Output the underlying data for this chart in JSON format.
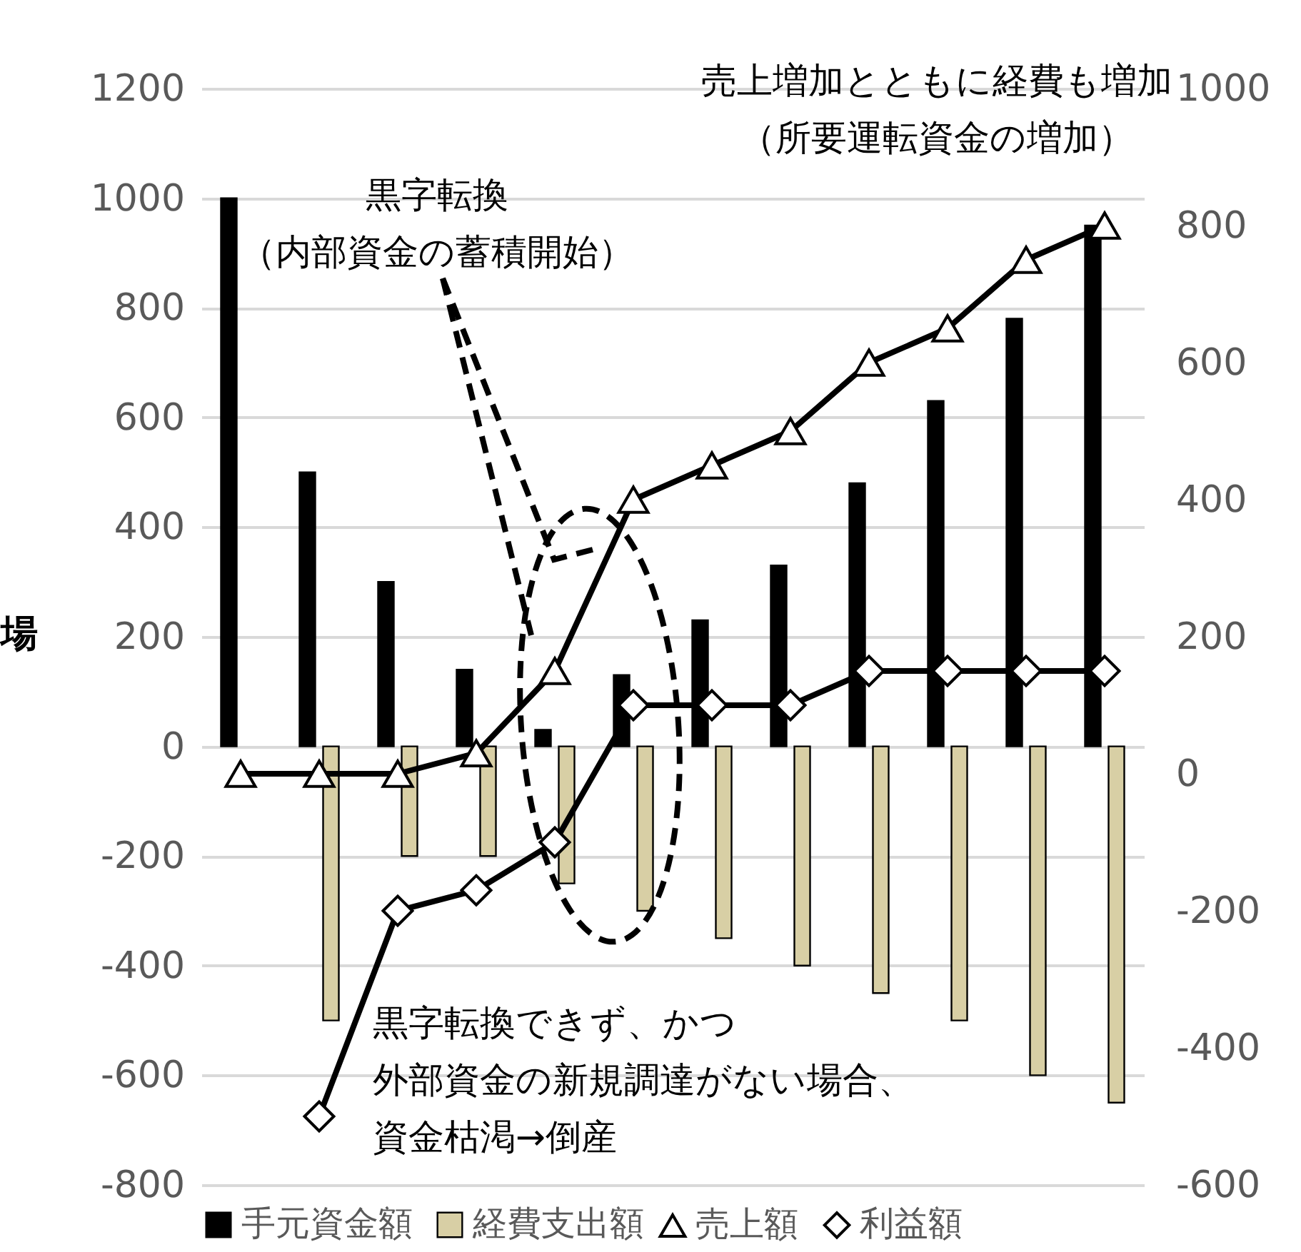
{
  "chart_data": {
    "type": "bar",
    "ylabel": "場",
    "categories": [
      null,
      null,
      null,
      null,
      null,
      null,
      null,
      null,
      null,
      null,
      null,
      null
    ],
    "series": [
      {
        "name": "手元資金額",
        "color": "#000000",
        "values": [
          1000,
          500,
          300,
          140,
          30,
          130,
          230,
          330,
          480,
          630,
          780,
          950
        ]
      },
      {
        "name": "経費支出額",
        "color": "#d8cfa5",
        "values": [
          null,
          -500,
          -200,
          -200,
          -250,
          -300,
          -350,
          -400,
          -450,
          -500,
          -600,
          -650
        ]
      },
      {
        "name": "売上額",
        "type": "line",
        "axis": "y2",
        "marker": "triangle",
        "color": "#000000",
        "values": [
          0,
          0,
          0,
          30,
          150,
          400,
          450,
          500,
          600,
          650,
          750,
          800
        ]
      },
      {
        "name": "利益額",
        "type": "line",
        "axis": "y2",
        "marker": "diamond",
        "color": "#000000",
        "values": [
          null,
          -500,
          -200,
          -170,
          -100,
          100,
          100,
          100,
          150,
          150,
          150,
          150
        ]
      }
    ],
    "ylim": [
      -800,
      1200
    ],
    "yticks": [
      -800,
      -600,
      -400,
      -200,
      0,
      200,
      400,
      600,
      800,
      1000,
      1200
    ],
    "y2lim": [
      -600,
      1000
    ],
    "y2ticks": [
      -600,
      -400,
      -200,
      0,
      200,
      400,
      600,
      800,
      1000
    ],
    "grid": "y",
    "legend": "bottom",
    "annotations": [
      "黒字転換（内部資金の蓄積開始）",
      "売上増加とともに経費も増加（所要運転資金の増加）",
      "黒字転換できず、かつ外部資金の新規調達がない場合、資金枯渇→倒産"
    ]
  }
}
